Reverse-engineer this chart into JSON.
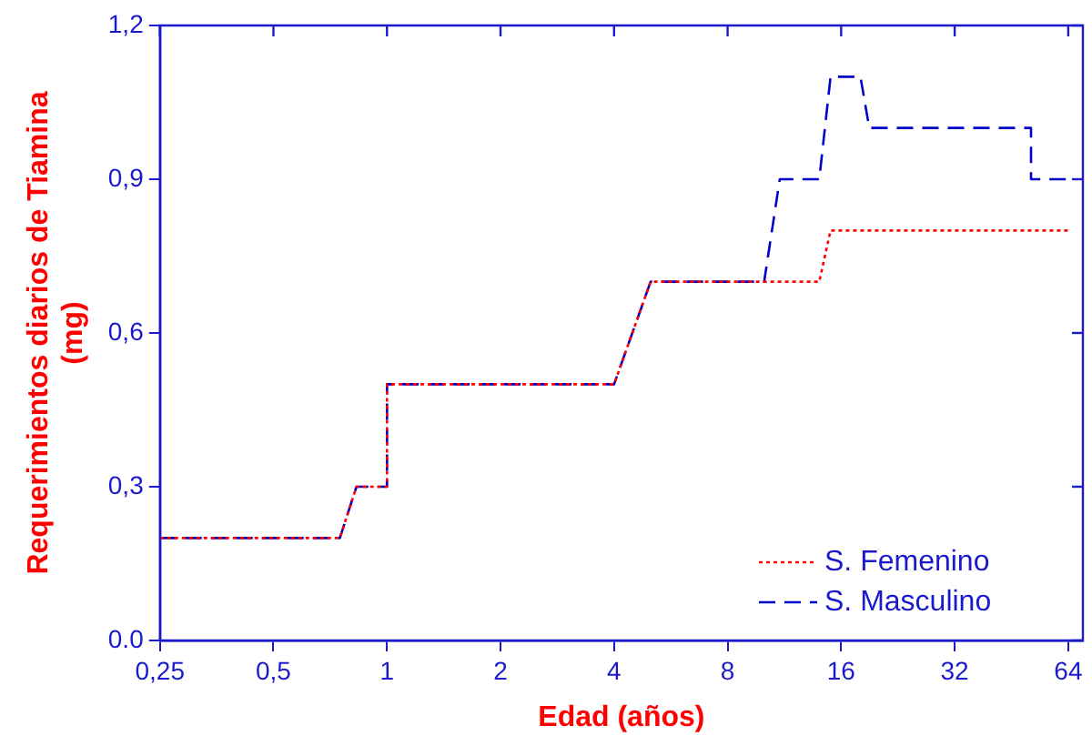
{
  "chart_data": {
    "type": "line",
    "xlabel": "Edad (años)",
    "ylabel": "Requerimientos diarios de Tiamina\n(mg)",
    "xlim": [
      0.25,
      70
    ],
    "xticks": [
      {
        "value": 0.25,
        "label": "0,25"
      },
      {
        "value": 0.5,
        "label": "0,5"
      },
      1,
      2,
      4,
      8,
      16,
      32,
      64
    ],
    "ylim": [
      0,
      1.2
    ],
    "yticks": [
      {
        "value": 0,
        "label": "0.0"
      },
      {
        "value": 0.3,
        "label": "0,3"
      },
      {
        "value": 0.6,
        "label": "0,6"
      },
      {
        "value": 0.9,
        "label": "0,9"
      },
      {
        "value": 1.2,
        "label": "1,2"
      }
    ],
    "log": "x",
    "grid": false,
    "legend": "bottom right",
    "marker": "none",
    "series": [
      {
        "name": "S. Femenino",
        "color": "#ff0000",
        "line_style": "dotted",
        "x": [
          0.25,
          0.75,
          0.83,
          1,
          1,
          4,
          5,
          14,
          15,
          64
        ],
        "values": [
          0.2,
          0.2,
          0.3,
          0.3,
          0.5,
          0.5,
          0.7,
          0.7,
          0.8,
          0.8
        ]
      },
      {
        "name": "S. Masculino",
        "color": "#0000cc",
        "line_style": "dashed",
        "x": [
          0.25,
          0.75,
          0.83,
          1,
          1,
          4,
          5,
          10,
          11,
          14,
          15,
          18,
          19,
          51,
          51,
          64
        ],
        "values": [
          0.2,
          0.2,
          0.3,
          0.3,
          0.5,
          0.5,
          0.7,
          0.7,
          0.9,
          0.9,
          1.1,
          1.1,
          1.0,
          1.0,
          0.9,
          0.9
        ]
      }
    ]
  }
}
